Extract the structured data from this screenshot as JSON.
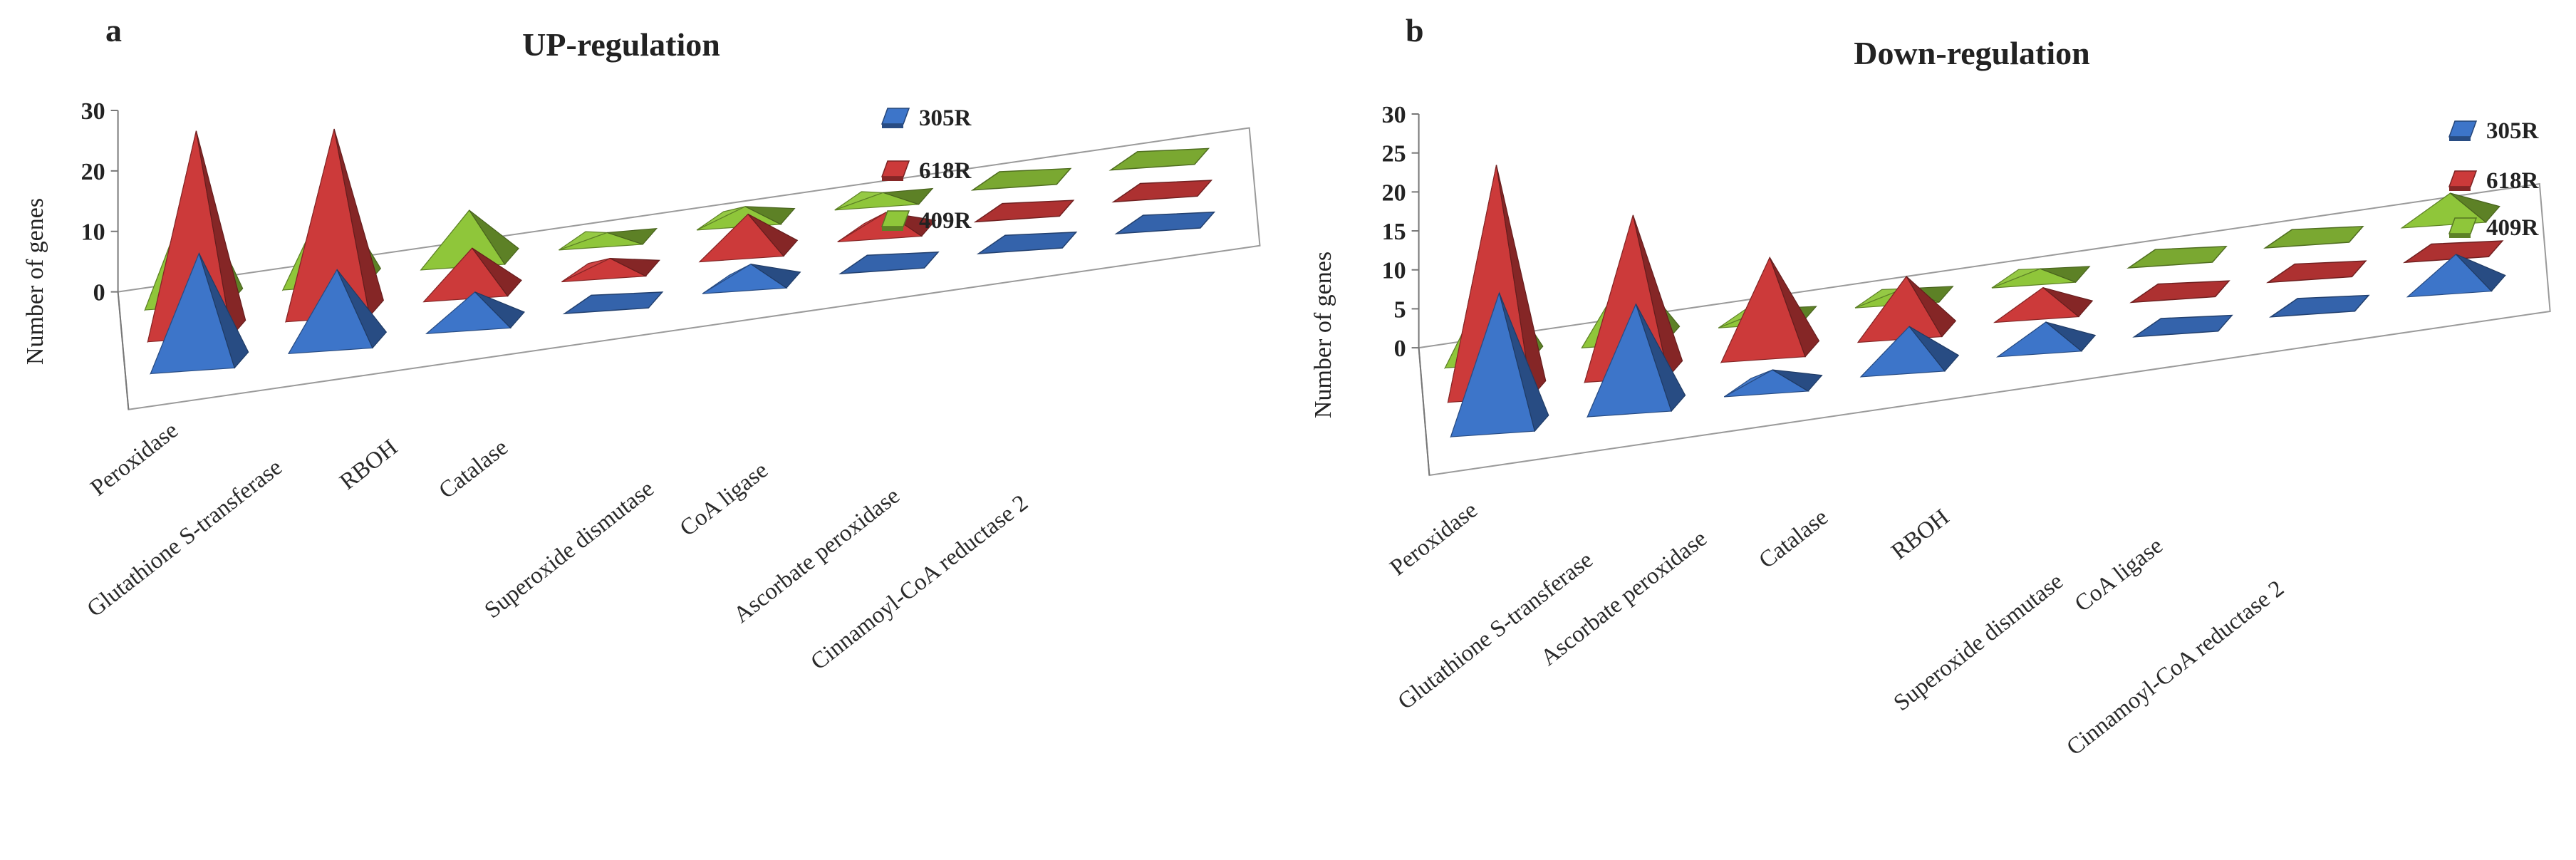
{
  "colors": {
    "305R": "#3d75c9",
    "618R": "#cc3a3a",
    "409R": "#8fc63a"
  },
  "chart_data": [
    {
      "panel": "a",
      "type": "bar",
      "style": "3d-pyramid",
      "title": "UP-regulation",
      "xlabel": "",
      "ylabel": "Number of genes",
      "ylim": [
        0,
        30
      ],
      "yticks": [
        "0",
        "10",
        "20",
        "30"
      ],
      "legend_position": "top-right",
      "categories": [
        "Peroxidase",
        "Glutathione S-transferase",
        "RBOH",
        "Catalase",
        "Superoxide dismutase",
        "CoA ligase",
        "Ascorbate peroxidase",
        "Cinnamoyl-CoA reductase 2"
      ],
      "series": [
        {
          "name": "305R",
          "values": [
            18,
            12,
            5,
            0,
            3,
            0,
            0,
            0
          ]
        },
        {
          "name": "618R",
          "values": [
            33,
            30,
            7,
            2,
            6,
            3,
            0,
            0
          ]
        },
        {
          "name": "409R",
          "values": [
            19,
            15,
            8,
            1,
            2,
            1,
            0,
            0
          ]
        }
      ]
    },
    {
      "panel": "b",
      "type": "bar",
      "style": "3d-pyramid",
      "title": "Down-regulation",
      "xlabel": "",
      "ylabel": "Number of genes",
      "ylim": [
        0,
        30
      ],
      "yticks": [
        "0",
        "5",
        "10",
        "15",
        "20",
        "25",
        "30"
      ],
      "legend_position": "top-right",
      "categories": [
        "Peroxidase",
        "Glutathione S-transferase",
        "Ascorbate peroxidase",
        "Catalase",
        "RBOH",
        "Superoxide dismutase",
        "CoA ligase",
        "Cinnamoyl-CoA reductase 2"
      ],
      "series": [
        {
          "name": "305R",
          "values": [
            17,
            13,
            2,
            5,
            3,
            0,
            0,
            4
          ]
        },
        {
          "name": "618R",
          "values": [
            29,
            20,
            12,
            7,
            3,
            0,
            0,
            0
          ]
        },
        {
          "name": "409R",
          "values": [
            11,
            9,
            1,
            1,
            1,
            0,
            0,
            3
          ]
        }
      ]
    }
  ]
}
